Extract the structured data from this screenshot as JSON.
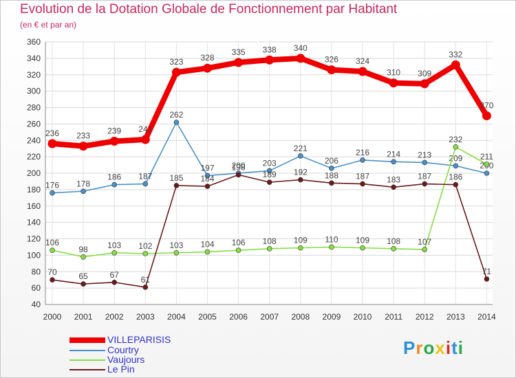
{
  "title": "Evolution de la Dotation Globale de Fonctionnement par Habitant",
  "subtitle": "(en € et par an)",
  "logo": {
    "text": "Proxiti"
  },
  "chart_data": {
    "type": "line",
    "title": "Evolution de la Dotation Globale de Fonctionnement par Habitant",
    "ylabel": "(en € et par an)",
    "xlabel": "",
    "categories": [
      "2000",
      "2001",
      "2002",
      "2003",
      "2004",
      "2005",
      "2006",
      "2007",
      "2008",
      "2009",
      "2010",
      "2011",
      "2012",
      "2013",
      "2014"
    ],
    "ylim": [
      40,
      360
    ],
    "yticks": [
      40,
      60,
      80,
      100,
      120,
      140,
      160,
      180,
      200,
      220,
      240,
      260,
      280,
      300,
      320,
      340,
      360
    ],
    "grid": true,
    "legend_position": "bottom-left",
    "series": [
      {
        "name": "VILLEPARISIS",
        "color": "#ee0000",
        "values": [
          236,
          233,
          239,
          241,
          323,
          328,
          335,
          338,
          340,
          326,
          324,
          310,
          309,
          332,
          270
        ]
      },
      {
        "name": "Courtry",
        "color": "#4a90c8",
        "values": [
          176,
          178,
          186,
          187,
          262,
          197,
          200,
          203,
          221,
          206,
          216,
          214,
          213,
          209,
          200
        ]
      },
      {
        "name": "Vaujours",
        "color": "#88dd44",
        "values": [
          106,
          98,
          103,
          102,
          103,
          104,
          106,
          108,
          109,
          110,
          109,
          108,
          107,
          232,
          211
        ]
      },
      {
        "name": "Le Pin",
        "color": "#6b1a1a",
        "values": [
          70,
          65,
          67,
          61,
          185,
          184,
          198,
          189,
          192,
          188,
          187,
          183,
          187,
          186,
          71
        ]
      }
    ]
  }
}
